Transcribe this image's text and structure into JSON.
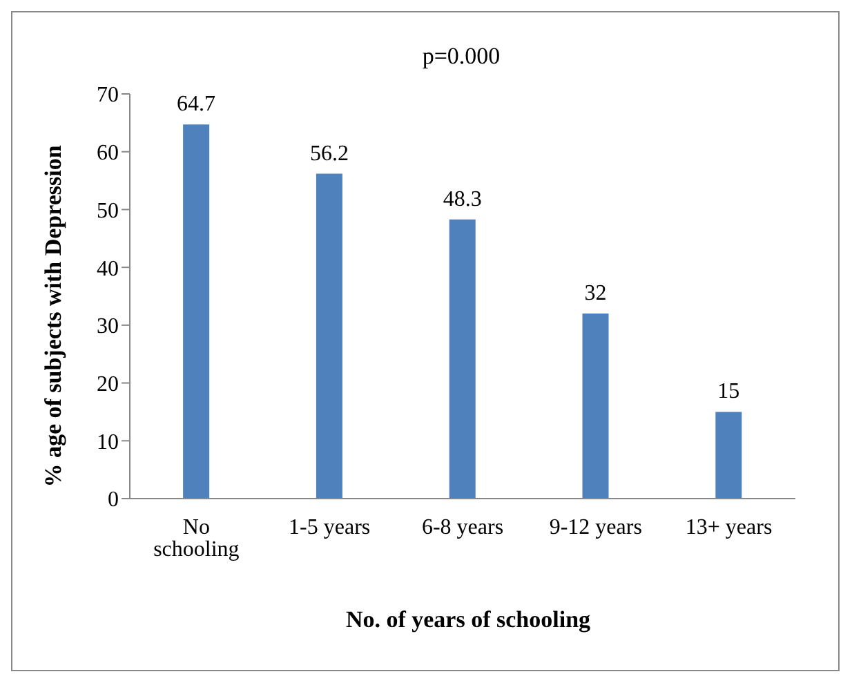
{
  "chart_data": {
    "type": "bar",
    "title": "p=0.000",
    "xlabel": "No. of years of schooling",
    "ylabel": "% age of subjects with Depression",
    "categories": [
      "No schooling",
      "1-5 years",
      "6-8 years",
      "9-12 years",
      "13+ years"
    ],
    "values": [
      64.7,
      56.2,
      48.3,
      32,
      15
    ],
    "color": "#4f81bd",
    "ylim": [
      0,
      70
    ],
    "yticks": [
      0,
      10,
      20,
      30,
      40,
      50,
      60,
      70
    ],
    "data_labels": true,
    "grid": false
  }
}
